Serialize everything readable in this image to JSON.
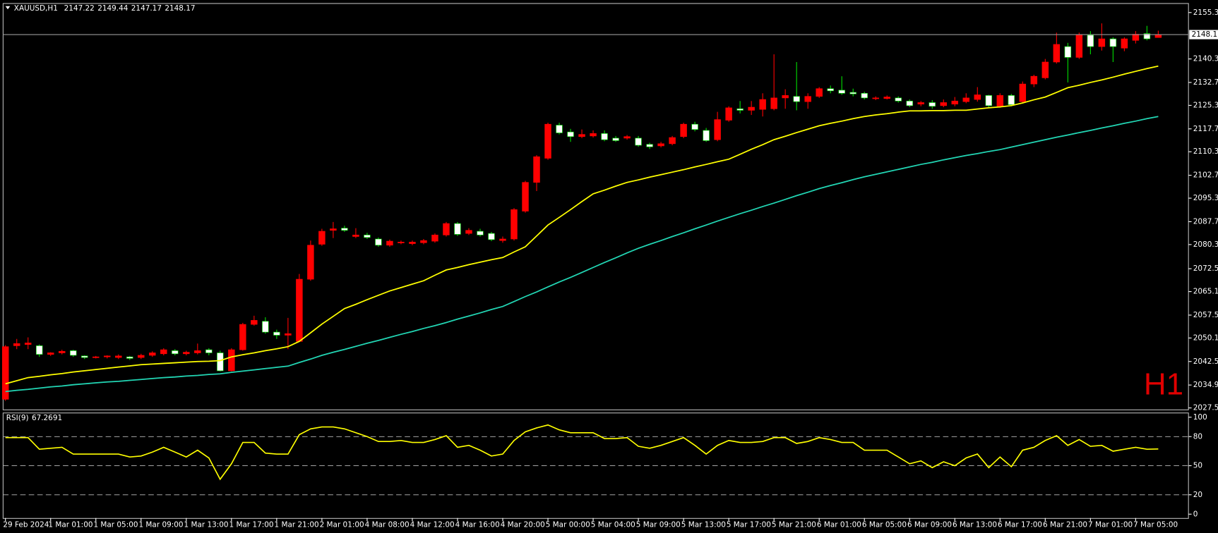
{
  "chart_data": [
    {
      "type": "candlestick",
      "title": "XAUUSD,H1",
      "watermark": "H1",
      "categories": [
        "29 Feb 2024",
        null,
        null,
        null,
        "1 Mar 01:00",
        null,
        null,
        null,
        "1 Mar 05:00",
        null,
        null,
        null,
        "1 Mar 09:00",
        null,
        null,
        null,
        "1 Mar 13:00",
        null,
        null,
        null,
        "1 Mar 17:00",
        null,
        null,
        null,
        "1 Mar 21:00",
        null,
        null,
        null,
        "2 Mar 01:00",
        null,
        null,
        null,
        "4 Mar 08:00",
        null,
        null,
        null,
        "4 Mar 12:00",
        null,
        null,
        null,
        "4 Mar 16:00",
        null,
        null,
        null,
        "4 Mar 20:00",
        null,
        null,
        null,
        "5 Mar 00:00",
        null,
        null,
        null,
        "5 Mar 04:00",
        null,
        null,
        null,
        "5 Mar 09:00",
        null,
        null,
        null,
        "5 Mar 13:00",
        null,
        null,
        null,
        "5 Mar 17:00",
        null,
        null,
        null,
        "5 Mar 21:00",
        null,
        null,
        null,
        "6 Mar 01:00",
        null,
        null,
        null,
        "6 Mar 05:00",
        null,
        null,
        null,
        "6 Mar 09:00",
        null,
        null,
        null,
        "6 Mar 13:00",
        null,
        null,
        null,
        "6 Mar 17:00",
        null,
        null,
        null,
        "6 Mar 21:00",
        null,
        null,
        null,
        "7 Mar 01:00",
        null,
        null,
        null,
        "7 Mar 05:00",
        null,
        null
      ],
      "open": [
        2030.3,
        2047.6,
        2048.0,
        2047.6,
        2044.8,
        2045.3,
        2046.0,
        2044.3,
        2043.8,
        2044.0,
        2043.8,
        2044.0,
        2043.8,
        2044.5,
        2045.0,
        2046.0,
        2045.0,
        2045.3,
        2046.3,
        2045.3,
        2039.5,
        2046.3,
        2054.5,
        2055.5,
        2052.0,
        2051.0,
        2049.0,
        2069.1,
        2080.4,
        2084.9,
        2085.6,
        2082.9,
        2083.4,
        2082.1,
        2080.1,
        2080.9,
        2080.6,
        2080.9,
        2081.4,
        2083.4,
        2087.1,
        2083.9,
        2084.6,
        2083.9,
        2081.6,
        2082.1,
        2091.1,
        2100.4,
        2108.2,
        2118.9,
        2116.7,
        2115.2,
        2115.4,
        2116.2,
        2114.7,
        2114.7,
        2114.7,
        2112.7,
        2112.2,
        2112.9,
        2115.2,
        2119.2,
        2117.2,
        2114.2,
        2120.5,
        2124.2,
        2123.7,
        2124.0,
        2124.2,
        2127.7,
        2128.2,
        2126.5,
        2128.2,
        2130.7,
        2130.2,
        2129.5,
        2129.2,
        2127.5,
        2127.5,
        2127.7,
        2126.7,
        2125.7,
        2126.2,
        2125.2,
        2125.7,
        2126.5,
        2127.2,
        2128.5,
        2125.0,
        2128.5,
        2126.5,
        2132.2,
        2134.2,
        2139.3,
        2144.3,
        2140.8,
        2148.0,
        2144.3,
        2146.8,
        2143.8,
        2146.3,
        2148.5,
        2147.22
      ],
      "high": [
        2047.8,
        2049.8,
        2050.3,
        2048.0,
        2045.5,
        2046.3,
        2046.3,
        2044.5,
        2044.3,
        2044.5,
        2044.8,
        2044.3,
        2045.0,
        2045.8,
        2046.8,
        2046.5,
        2046.0,
        2048.3,
        2046.8,
        2046.0,
        2046.8,
        2055.0,
        2057.3,
        2056.8,
        2052.8,
        2056.6,
        2070.8,
        2081.6,
        2085.4,
        2087.6,
        2086.4,
        2085.6,
        2084.1,
        2082.6,
        2081.9,
        2081.6,
        2081.6,
        2082.1,
        2083.9,
        2087.6,
        2087.6,
        2085.6,
        2085.4,
        2084.4,
        2082.9,
        2092.1,
        2100.9,
        2109.2,
        2119.7,
        2119.7,
        2117.7,
        2117.5,
        2117.2,
        2117.2,
        2115.4,
        2115.7,
        2115.4,
        2113.2,
        2113.5,
        2115.4,
        2119.7,
        2120.0,
        2118.0,
        2123.2,
        2125.0,
        2126.7,
        2126.7,
        2129.2,
        2141.8,
        2130.5,
        2139.3,
        2129.2,
        2131.2,
        2131.7,
        2134.7,
        2130.7,
        2129.7,
        2128.2,
        2128.5,
        2128.2,
        2127.2,
        2126.7,
        2127.0,
        2127.2,
        2128.0,
        2129.2,
        2131.2,
        2128.7,
        2129.2,
        2129.0,
        2133.0,
        2135.2,
        2140.3,
        2148.8,
        2145.5,
        2148.8,
        2149.3,
        2151.8,
        2147.3,
        2147.3,
        2149.3,
        2151.0,
        2149.44
      ],
      "low": [
        2029.8,
        2046.5,
        2046.5,
        2044.0,
        2044.3,
        2044.8,
        2044.0,
        2043.3,
        2043.5,
        2043.5,
        2043.3,
        2043.0,
        2043.3,
        2044.0,
        2044.5,
        2044.5,
        2044.5,
        2044.8,
        2044.5,
        2039.3,
        2039.3,
        2046.0,
        2054.1,
        2051.5,
        2049.8,
        2046.5,
        2048.8,
        2068.6,
        2079.9,
        2082.4,
        2084.4,
        2082.4,
        2082.1,
        2079.6,
        2079.6,
        2080.4,
        2080.1,
        2080.4,
        2080.9,
        2082.9,
        2083.1,
        2083.4,
        2082.9,
        2081.4,
        2080.9,
        2081.6,
        2090.6,
        2097.6,
        2107.7,
        2115.9,
        2113.5,
        2114.7,
        2114.9,
        2113.7,
        2113.5,
        2114.2,
        2111.9,
        2111.2,
        2111.7,
        2112.4,
        2114.7,
        2116.9,
        2113.5,
        2113.7,
        2120.0,
        2122.7,
        2122.2,
        2121.7,
        2123.7,
        2124.2,
        2123.7,
        2124.2,
        2127.7,
        2129.2,
        2128.7,
        2128.2,
        2127.2,
        2127.0,
        2127.2,
        2126.2,
        2124.7,
        2125.0,
        2124.2,
        2124.7,
        2125.0,
        2126.0,
        2126.5,
        2124.7,
        2124.5,
        2125.0,
        2126.0,
        2131.2,
        2133.7,
        2138.8,
        2132.7,
        2140.3,
        2141.8,
        2143.0,
        2139.3,
        2142.8,
        2145.3,
        2146.3,
        2147.17
      ],
      "close": [
        2047.3,
        2048.3,
        2048.5,
        2044.8,
        2045.3,
        2045.8,
        2044.5,
        2043.8,
        2044.0,
        2044.3,
        2044.3,
        2043.5,
        2044.5,
        2045.3,
        2046.3,
        2045.0,
        2045.5,
        2046.0,
        2045.3,
        2039.5,
        2046.3,
        2054.5,
        2055.8,
        2052.0,
        2051.0,
        2051.5,
        2069.1,
        2080.1,
        2084.6,
        2085.4,
        2084.9,
        2083.4,
        2082.6,
        2080.1,
        2081.4,
        2081.1,
        2081.1,
        2081.6,
        2083.4,
        2087.1,
        2083.6,
        2084.9,
        2083.4,
        2081.9,
        2082.1,
        2091.6,
        2100.4,
        2108.7,
        2119.2,
        2116.4,
        2115.2,
        2115.9,
        2116.2,
        2114.2,
        2113.9,
        2115.2,
        2112.4,
        2111.9,
        2112.9,
        2114.9,
        2119.2,
        2117.5,
        2113.9,
        2120.7,
        2124.5,
        2123.7,
        2124.7,
        2127.2,
        2127.7,
        2128.5,
        2126.5,
        2128.2,
        2130.7,
        2130.0,
        2129.2,
        2129.0,
        2127.7,
        2127.7,
        2128.0,
        2126.7,
        2125.2,
        2126.2,
        2125.0,
        2126.2,
        2126.7,
        2127.7,
        2128.7,
        2125.2,
        2128.5,
        2125.5,
        2132.2,
        2134.7,
        2139.3,
        2145.0,
        2140.8,
        2148.0,
        2144.3,
        2146.8,
        2144.3,
        2146.8,
        2148.3,
        2146.8,
        2148.17
      ],
      "bull_color": "#ff0000",
      "bear_color": "#ffffff",
      "bear_wick_color": "#00e000",
      "series": [
        {
          "color": "#ffff00",
          "values": [
            2035.3,
            2036.3,
            2037.3,
            2037.7,
            2038.2,
            2038.6,
            2039.1,
            2039.5,
            2039.9,
            2040.3,
            2040.7,
            2041.1,
            2041.5,
            2041.7,
            2041.9,
            2042.1,
            2042.3,
            2042.5,
            2042.6,
            2042.8,
            2044.0,
            2044.7,
            2045.3,
            2046.0,
            2046.6,
            2047.3,
            2049.0,
            2051.8,
            2054.6,
            2057.1,
            2059.6,
            2061.0,
            2062.5,
            2063.9,
            2065.3,
            2066.4,
            2067.5,
            2068.6,
            2070.4,
            2072.1,
            2072.9,
            2073.8,
            2074.6,
            2075.4,
            2076.1,
            2077.9,
            2079.6,
            2083.1,
            2086.6,
            2089.1,
            2091.6,
            2094.2,
            2096.7,
            2097.9,
            2099.2,
            2100.4,
            2101.2,
            2102.1,
            2102.9,
            2103.7,
            2104.5,
            2105.4,
            2106.2,
            2107.1,
            2107.9,
            2109.5,
            2111.1,
            2112.6,
            2114.2,
            2115.3,
            2116.5,
            2117.6,
            2118.7,
            2119.5,
            2120.2,
            2121.0,
            2121.7,
            2122.2,
            2122.6,
            2123.1,
            2123.5,
            2123.5,
            2123.6,
            2123.6,
            2123.7,
            2123.7,
            2124.1,
            2124.5,
            2124.8,
            2125.2,
            2126.1,
            2127.1,
            2128.0,
            2129.5,
            2131.0,
            2131.8,
            2132.7,
            2133.5,
            2134.4,
            2135.4,
            2136.3,
            2137.2,
            2138.0
          ]
        },
        {
          "color": "#22d6b4",
          "values": [
            2032.8,
            2033.2,
            2033.5,
            2033.9,
            2034.3,
            2034.6,
            2035.0,
            2035.3,
            2035.6,
            2035.9,
            2036.1,
            2036.4,
            2036.7,
            2037.0,
            2037.3,
            2037.5,
            2037.8,
            2038.0,
            2038.3,
            2038.5,
            2039.0,
            2039.4,
            2039.8,
            2040.2,
            2040.6,
            2041.0,
            2042.2,
            2043.3,
            2044.5,
            2045.5,
            2046.4,
            2047.4,
            2048.4,
            2049.3,
            2050.3,
            2051.3,
            2052.2,
            2053.2,
            2054.1,
            2055.1,
            2056.2,
            2057.2,
            2058.2,
            2059.3,
            2060.3,
            2061.9,
            2063.5,
            2065.0,
            2066.6,
            2068.2,
            2069.7,
            2071.3,
            2072.9,
            2074.5,
            2076.0,
            2077.6,
            2079.1,
            2080.4,
            2081.6,
            2082.9,
            2084.1,
            2085.4,
            2086.6,
            2087.9,
            2089.1,
            2090.3,
            2091.4,
            2092.6,
            2093.7,
            2094.9,
            2096.1,
            2097.2,
            2098.4,
            2099.4,
            2100.3,
            2101.3,
            2102.2,
            2103.0,
            2103.8,
            2104.6,
            2105.4,
            2106.2,
            2106.9,
            2107.7,
            2108.4,
            2109.1,
            2109.7,
            2110.4,
            2111.0,
            2111.8,
            2112.6,
            2113.4,
            2114.2,
            2115.0,
            2115.7,
            2116.5,
            2117.2,
            2118.0,
            2118.7,
            2119.5,
            2120.2,
            2121.0,
            2121.7
          ]
        }
      ],
      "ylim": [
        2027.0,
        2158.1
      ],
      "yticks": [
        {
          "value": 2155.3,
          "label": "2155.30"
        },
        {
          "value": 2140.3,
          "label": "2140.30"
        },
        {
          "value": 2132.7,
          "label": "2132.70"
        },
        {
          "value": 2125.3,
          "label": "2125.30"
        },
        {
          "value": 2117.7,
          "label": "2117.70"
        },
        {
          "value": 2110.3,
          "label": "2110.30"
        },
        {
          "value": 2102.7,
          "label": "2102.70"
        },
        {
          "value": 2095.3,
          "label": "2095.30"
        },
        {
          "value": 2087.7,
          "label": "2087.70"
        },
        {
          "value": 2080.3,
          "label": "2080.30"
        },
        {
          "value": 2072.5,
          "label": "2072.50"
        },
        {
          "value": 2065.1,
          "label": "2065.10"
        },
        {
          "value": 2057.5,
          "label": "2057.50"
        },
        {
          "value": 2050.1,
          "label": "2050.10"
        },
        {
          "value": 2042.5,
          "label": "2042.50"
        },
        {
          "value": 2034.9,
          "label": "2034.90"
        },
        {
          "value": 2027.5,
          "label": "2027.50"
        }
      ],
      "grid": false
    },
    {
      "type": "line",
      "title": "RSI(9)",
      "series": [
        {
          "color": "#ffff00",
          "values": [
            79,
            79,
            79,
            67,
            68,
            69,
            62,
            62,
            62,
            62,
            62,
            59,
            60,
            64,
            69,
            64,
            59,
            66,
            58,
            36,
            52,
            74,
            74,
            63,
            62,
            62,
            82,
            88,
            90,
            90,
            88,
            84,
            80,
            75,
            75,
            76,
            74,
            74,
            77,
            81,
            69,
            71,
            66,
            60,
            62,
            76,
            85,
            89,
            92,
            87,
            84,
            84,
            84,
            78,
            78,
            79,
            70,
            68,
            71,
            75,
            79,
            71,
            62,
            71,
            76,
            74,
            74,
            75,
            79,
            79,
            73,
            75,
            79,
            77,
            74,
            74,
            66,
            66,
            66,
            59,
            52,
            55,
            48,
            54,
            50,
            58,
            62,
            48,
            59,
            49,
            66,
            69,
            76,
            81,
            71,
            77,
            70,
            71,
            65,
            67,
            69,
            67,
            67.2691
          ]
        }
      ],
      "ylim": [
        -4,
        104
      ],
      "yticks": [
        0,
        20,
        50,
        80,
        100
      ],
      "levels": [
        20,
        50,
        80
      ]
    }
  ]
}
